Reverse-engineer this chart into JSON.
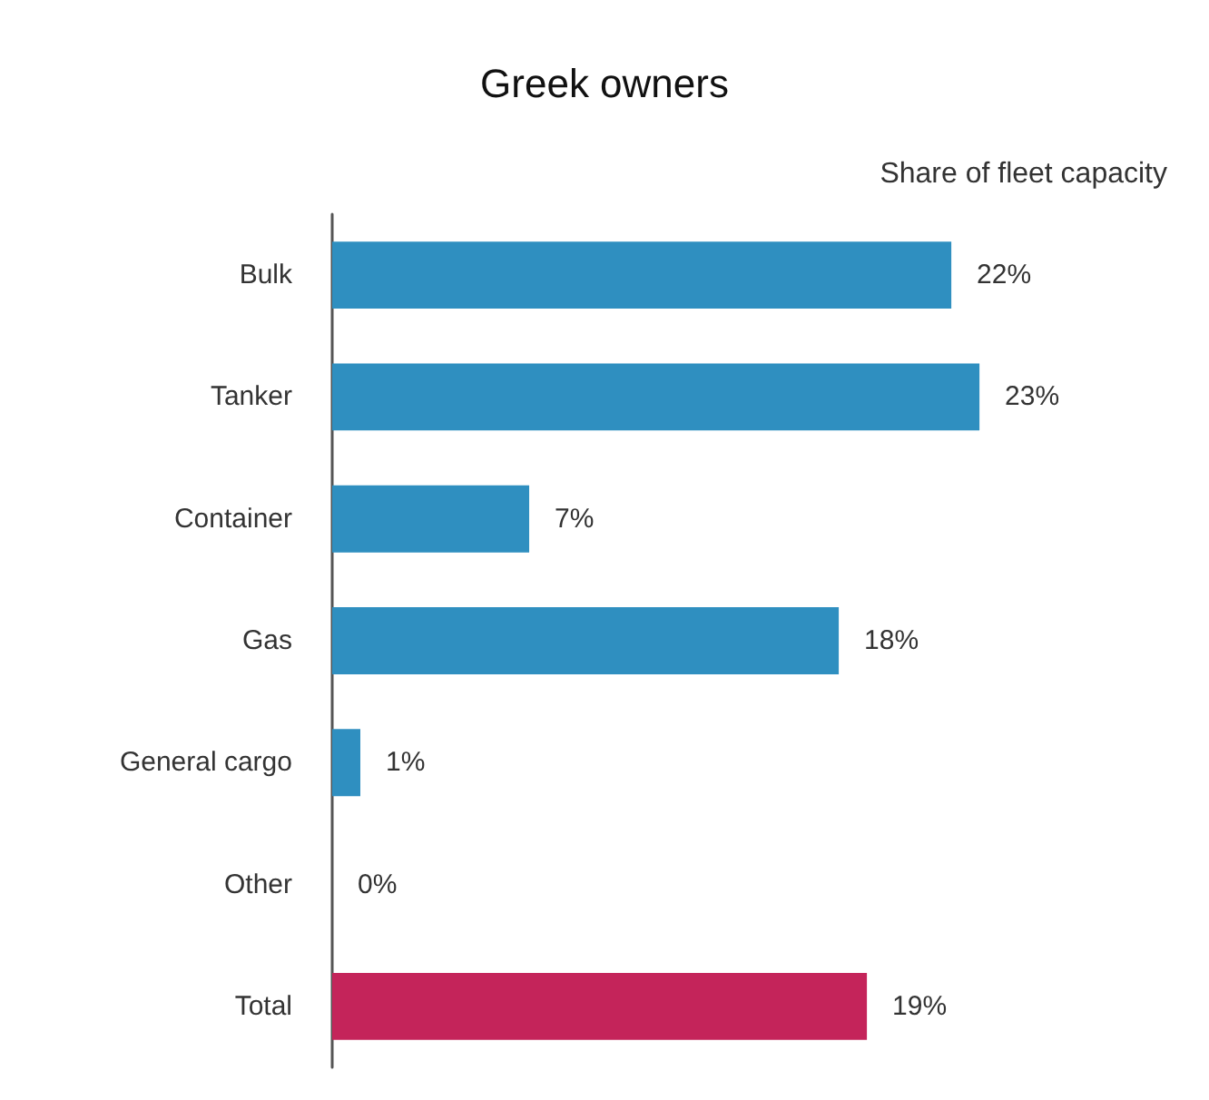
{
  "chart_data": {
    "type": "bar",
    "orientation": "horizontal",
    "title": "Greek owners",
    "xlabel": "Share of fleet capacity",
    "categories": [
      "Bulk",
      "Tanker",
      "Container",
      "Gas",
      "General cargo",
      "Other",
      "Total"
    ],
    "values": [
      22,
      23,
      7,
      18,
      1,
      0,
      19
    ],
    "value_labels": [
      "22%",
      "23%",
      "7%",
      "18%",
      "1%",
      "0%",
      "19%"
    ],
    "colors": [
      "#2f8fc0",
      "#2f8fc0",
      "#2f8fc0",
      "#2f8fc0",
      "#2f8fc0",
      "#2f8fc0",
      "#c4245a"
    ]
  }
}
